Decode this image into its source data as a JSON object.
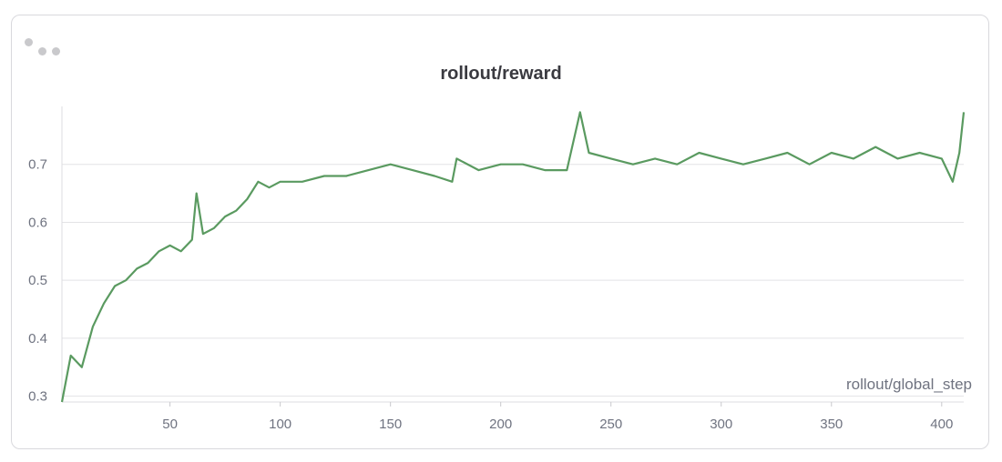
{
  "chart_data": {
    "type": "line",
    "title": "rollout/reward",
    "xlabel": "rollout/global_step",
    "ylabel": "",
    "xlim": [
      1,
      410
    ],
    "ylim": [
      0.29,
      0.8
    ],
    "xticks": [
      50,
      100,
      150,
      200,
      250,
      300,
      350,
      400
    ],
    "yticks": [
      0.3,
      0.4,
      0.5,
      0.6,
      0.7
    ],
    "grid": "horizontal",
    "line_color": "#5a9a60",
    "series": [
      {
        "x": [
          1,
          5,
          10,
          15,
          20,
          25,
          30,
          35,
          40,
          45,
          50,
          55,
          60,
          62,
          65,
          70,
          75,
          80,
          85,
          90,
          95,
          100,
          110,
          120,
          130,
          140,
          150,
          160,
          170,
          178,
          180,
          190,
          200,
          210,
          220,
          230,
          236,
          240,
          250,
          260,
          270,
          280,
          290,
          300,
          310,
          320,
          330,
          340,
          350,
          360,
          370,
          380,
          390,
          400,
          405,
          408,
          410
        ],
        "y": [
          0.29,
          0.37,
          0.35,
          0.42,
          0.46,
          0.49,
          0.5,
          0.52,
          0.53,
          0.55,
          0.56,
          0.55,
          0.57,
          0.65,
          0.58,
          0.59,
          0.61,
          0.62,
          0.64,
          0.67,
          0.66,
          0.67,
          0.67,
          0.68,
          0.68,
          0.69,
          0.7,
          0.69,
          0.68,
          0.67,
          0.71,
          0.69,
          0.7,
          0.7,
          0.69,
          0.69,
          0.79,
          0.72,
          0.71,
          0.7,
          0.71,
          0.7,
          0.72,
          0.71,
          0.7,
          0.71,
          0.72,
          0.7,
          0.72,
          0.71,
          0.73,
          0.71,
          0.72,
          0.71,
          0.67,
          0.72,
          0.79
        ]
      }
    ]
  }
}
